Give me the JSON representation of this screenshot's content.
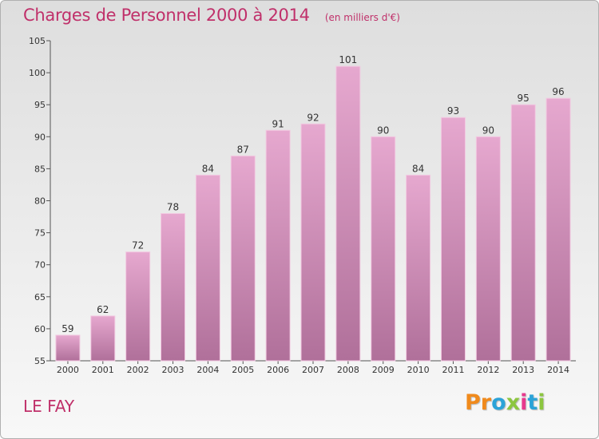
{
  "header": {
    "title": "Charges de Personnel 2000 à 2014",
    "subtitle": "(en milliers d'€)"
  },
  "footer": {
    "commune": "LE FAY",
    "logo_text": "Proxiti",
    "logo_colors": [
      "#f08a1c",
      "#f08a1c",
      "#2ba3d8",
      "#8cc63f",
      "#e7398d",
      "#2ba3d8",
      "#8cc63f"
    ]
  },
  "colors": {
    "accent": "#c0306a",
    "bar_top": "#e6a8cf",
    "bar_bottom": "#b0709a",
    "bar_edge": "#f2c9e1"
  },
  "chart_data": {
    "type": "bar",
    "title": "Charges de Personnel 2000 à 2014",
    "subtitle": "(en milliers d'€)",
    "categories": [
      "2000",
      "2001",
      "2002",
      "2003",
      "2004",
      "2005",
      "2006",
      "2007",
      "2008",
      "2009",
      "2010",
      "2011",
      "2012",
      "2013",
      "2014"
    ],
    "values": [
      59,
      62,
      72,
      78,
      84,
      87,
      91,
      92,
      101,
      90,
      84,
      93,
      90,
      95,
      96
    ],
    "ylim": [
      55,
      105
    ],
    "yticks": [
      55,
      60,
      65,
      70,
      75,
      80,
      85,
      90,
      95,
      100,
      105
    ],
    "xlabel": "",
    "ylabel": "",
    "grid": false,
    "legend": "none"
  }
}
